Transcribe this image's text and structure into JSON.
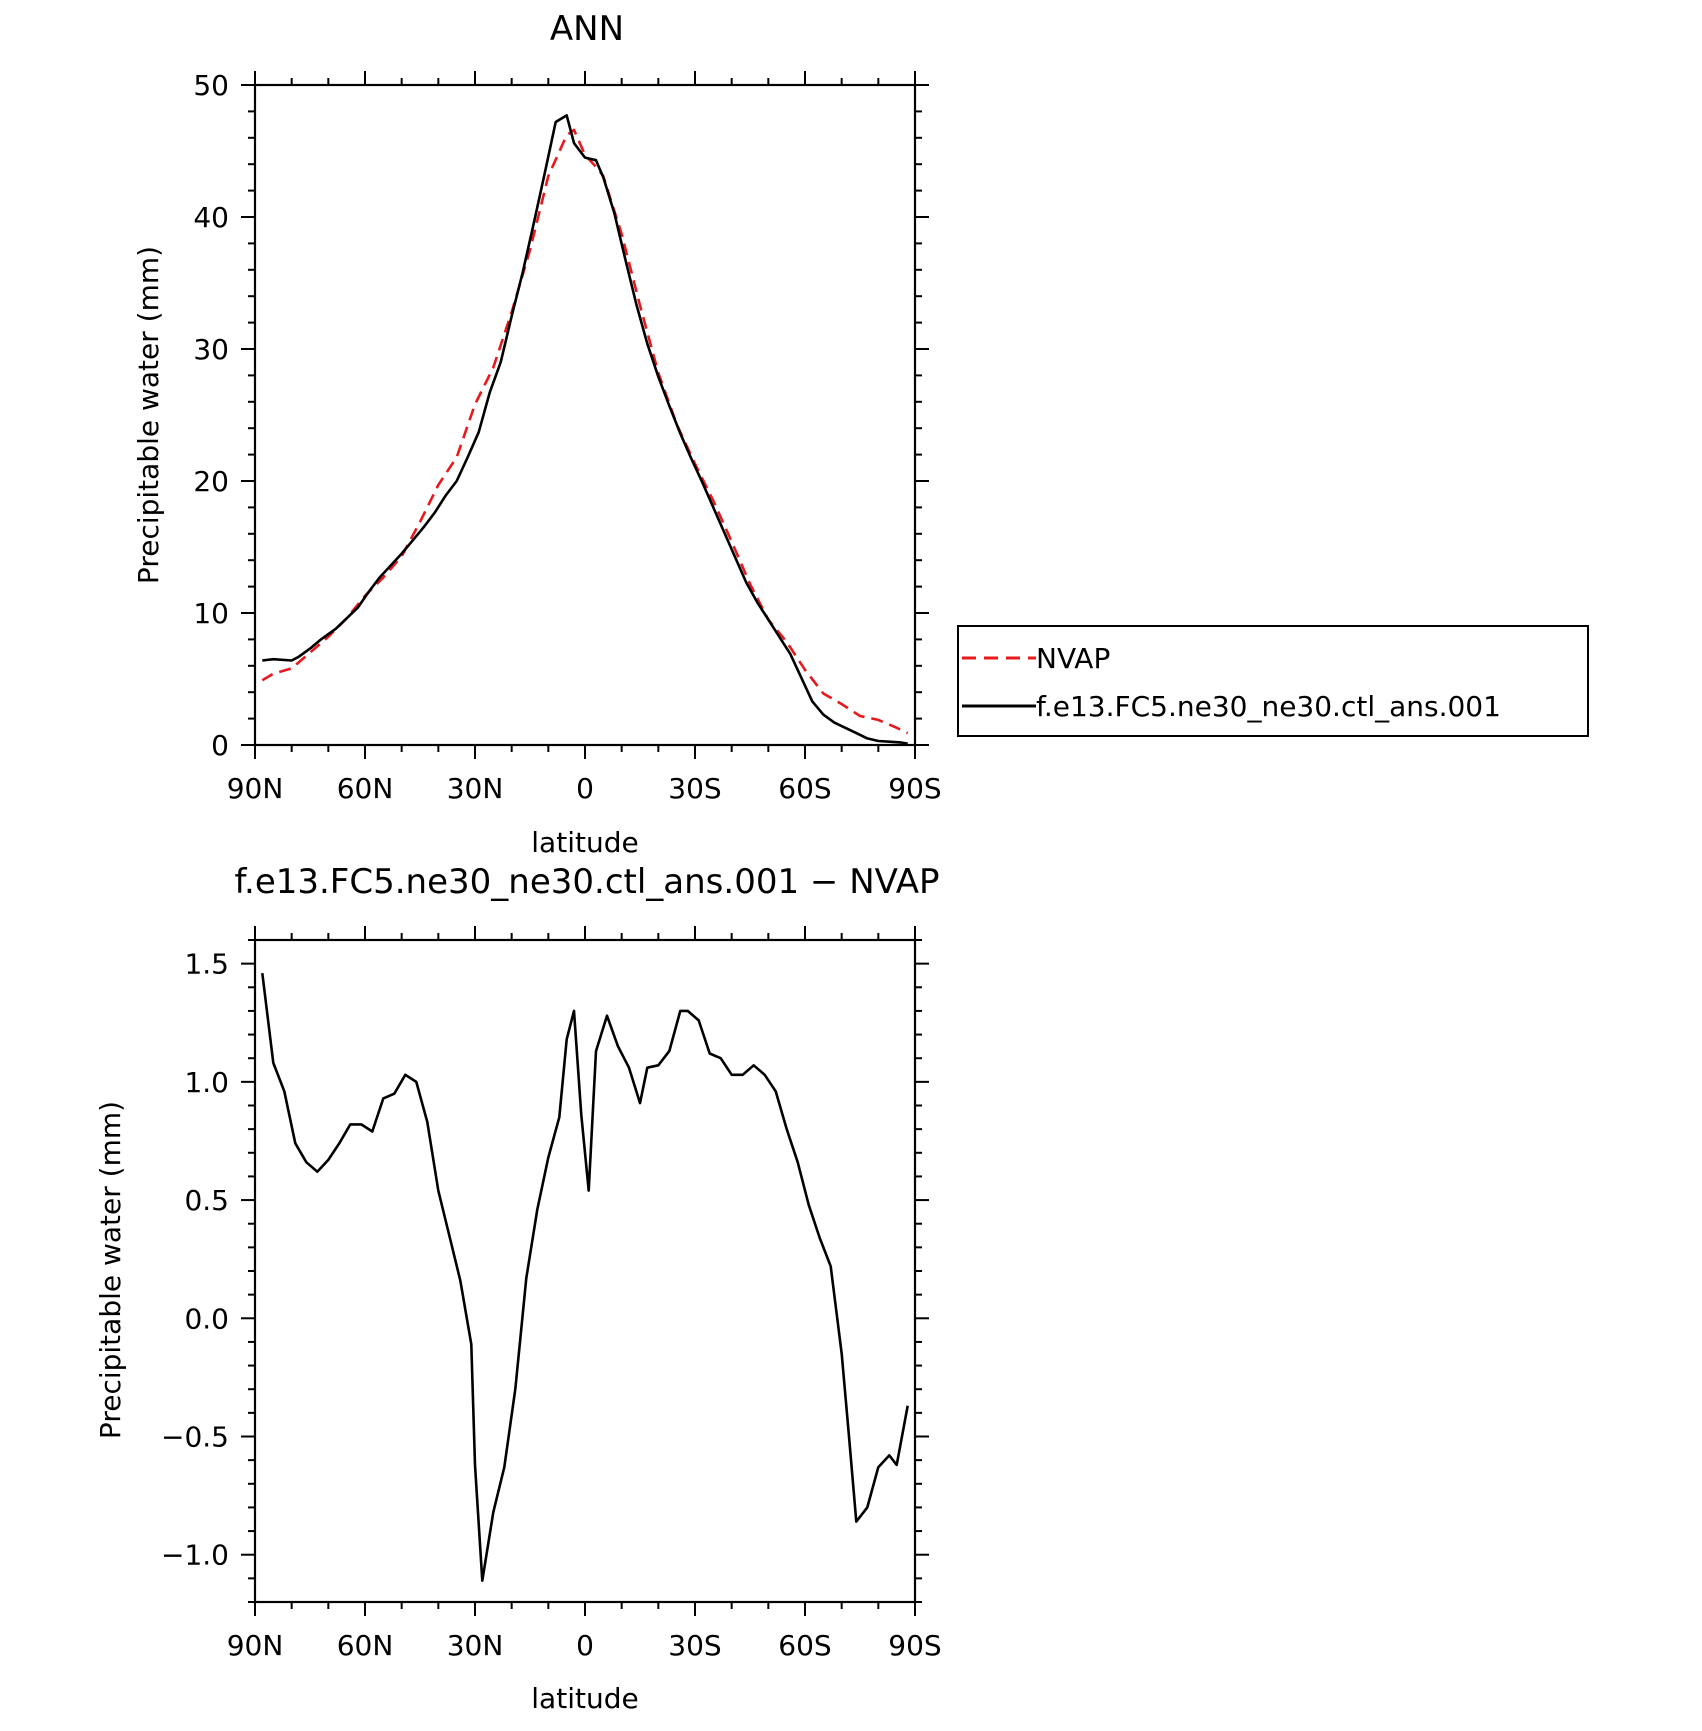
{
  "chart_data": [
    {
      "type": "line",
      "title": "ANN",
      "xlabel": "latitude",
      "ylabel": "Precipitable water (mm)",
      "xlim": [
        90,
        -90
      ],
      "ylim": [
        0,
        50
      ],
      "xticks": [
        90,
        60,
        30,
        0,
        -30,
        -60,
        -90
      ],
      "xtick_labels": [
        "90N",
        "60N",
        "30N",
        "0",
        "30S",
        "60S",
        "90S"
      ],
      "yticks": [
        0,
        10,
        20,
        30,
        40,
        50
      ],
      "ytick_labels": [
        "0",
        "10",
        "20",
        "30",
        "40",
        "50"
      ],
      "grid": false,
      "legend_position": "right",
      "series": [
        {
          "name": "NVAP",
          "color": "#e8191c",
          "dash": "dashed",
          "x": [
            88,
            85,
            80,
            75,
            70,
            65,
            60,
            55,
            50,
            45,
            40,
            35,
            30,
            25,
            20,
            15,
            10,
            5,
            3,
            0,
            -3,
            -5,
            -10,
            -15,
            -20,
            -25,
            -30,
            -35,
            -40,
            -45,
            -50,
            -55,
            -60,
            -65,
            -70,
            -75,
            -80,
            -85,
            -88
          ],
          "y": [
            4.9,
            5.4,
            5.8,
            7.0,
            8.2,
            9.6,
            11.3,
            12.7,
            14.3,
            16.9,
            19.7,
            21.8,
            25.8,
            28.6,
            32.8,
            37.5,
            43.1,
            46.2,
            46.6,
            44.7,
            43.8,
            43.1,
            38.7,
            33.3,
            28.2,
            24.3,
            21.3,
            18.5,
            15.4,
            12.2,
            9.5,
            7.8,
            5.7,
            3.9,
            3.1,
            2.2,
            1.9,
            1.3,
            0.9
          ]
        },
        {
          "name": "f.e13.FC5.ne30_ne30.ctl_ans.001",
          "color": "#000000",
          "dash": "solid",
          "x": [
            88,
            85,
            80,
            78,
            75,
            72,
            68,
            65,
            62,
            59,
            56,
            53,
            50,
            47,
            44,
            41,
            38,
            35,
            32,
            29,
            26,
            23,
            20,
            17,
            14,
            11,
            8,
            5,
            3,
            0,
            -3,
            -5,
            -8,
            -11,
            -14,
            -17,
            -20,
            -23,
            -26,
            -29,
            -32,
            -35,
            -38,
            -41,
            -44,
            -47,
            -50,
            -53,
            -56,
            -59,
            -62,
            -65,
            -68,
            -71,
            -74,
            -77,
            -80,
            -83,
            -86,
            -88
          ],
          "y": [
            6.4,
            6.5,
            6.4,
            6.7,
            7.3,
            8.0,
            8.8,
            9.6,
            10.4,
            11.6,
            12.7,
            13.6,
            14.5,
            15.5,
            16.5,
            17.6,
            18.9,
            20.0,
            21.8,
            23.7,
            26.7,
            29.0,
            32.5,
            35.8,
            39.5,
            43.3,
            47.2,
            47.7,
            45.6,
            44.5,
            44.3,
            43.0,
            40.3,
            36.8,
            33.4,
            30.4,
            27.9,
            25.7,
            23.6,
            21.7,
            19.9,
            18.0,
            16.1,
            14.2,
            12.3,
            10.8,
            9.5,
            8.2,
            6.9,
            5.1,
            3.3,
            2.3,
            1.7,
            1.3,
            0.9,
            0.5,
            0.3,
            0.25,
            0.2,
            0.1
          ]
        }
      ]
    },
    {
      "type": "line",
      "title": "f.e13.FC5.ne30_ne30.ctl_ans.001 − NVAP",
      "xlabel": "latitude",
      "ylabel": "Precipitable water (mm)",
      "xlim": [
        90,
        -90
      ],
      "ylim": [
        -1.2,
        1.6
      ],
      "xticks": [
        90,
        60,
        30,
        0,
        -30,
        -60,
        -90
      ],
      "xtick_labels": [
        "90N",
        "60N",
        "30N",
        "0",
        "30S",
        "60S",
        "90S"
      ],
      "yticks": [
        -1.0,
        -0.5,
        0.0,
        0.5,
        1.0,
        1.5
      ],
      "ytick_labels": [
        "−1.0",
        "−0.5",
        "0.0",
        "0.5",
        "1.0",
        "1.5"
      ],
      "grid": false,
      "series": [
        {
          "color": "#000000",
          "dash": "solid",
          "x": [
            88,
            85,
            82,
            79,
            76,
            73,
            70,
            67,
            64,
            61,
            58,
            55,
            52,
            49,
            46,
            43,
            40,
            37,
            34,
            31,
            30,
            28,
            25,
            22,
            19,
            16,
            13,
            10,
            7,
            5,
            3,
            1,
            -1,
            -3,
            -6,
            -9,
            -12,
            -15,
            -17,
            -20,
            -23,
            -26,
            -28,
            -31,
            -34,
            -37,
            -40,
            -43,
            -46,
            -49,
            -52,
            -55,
            -58,
            -61,
            -64,
            -67,
            -70,
            -72,
            -74,
            -77,
            -80,
            -83,
            -85,
            -88
          ],
          "y": [
            1.46,
            1.08,
            0.96,
            0.74,
            0.66,
            0.62,
            0.67,
            0.74,
            0.82,
            0.82,
            0.79,
            0.93,
            0.95,
            1.03,
            1.0,
            0.83,
            0.54,
            0.35,
            0.16,
            -0.11,
            -0.62,
            -1.11,
            -0.82,
            -0.63,
            -0.3,
            0.17,
            0.46,
            0.68,
            0.85,
            1.18,
            1.3,
            0.86,
            0.54,
            1.13,
            1.28,
            1.15,
            1.06,
            0.91,
            1.06,
            1.07,
            1.13,
            1.3,
            1.3,
            1.26,
            1.12,
            1.1,
            1.03,
            1.03,
            1.07,
            1.03,
            0.96,
            0.8,
            0.66,
            0.48,
            0.34,
            0.22,
            -0.15,
            -0.5,
            -0.86,
            -0.8,
            -0.63,
            -0.58,
            -0.62,
            -0.37
          ]
        }
      ]
    }
  ]
}
